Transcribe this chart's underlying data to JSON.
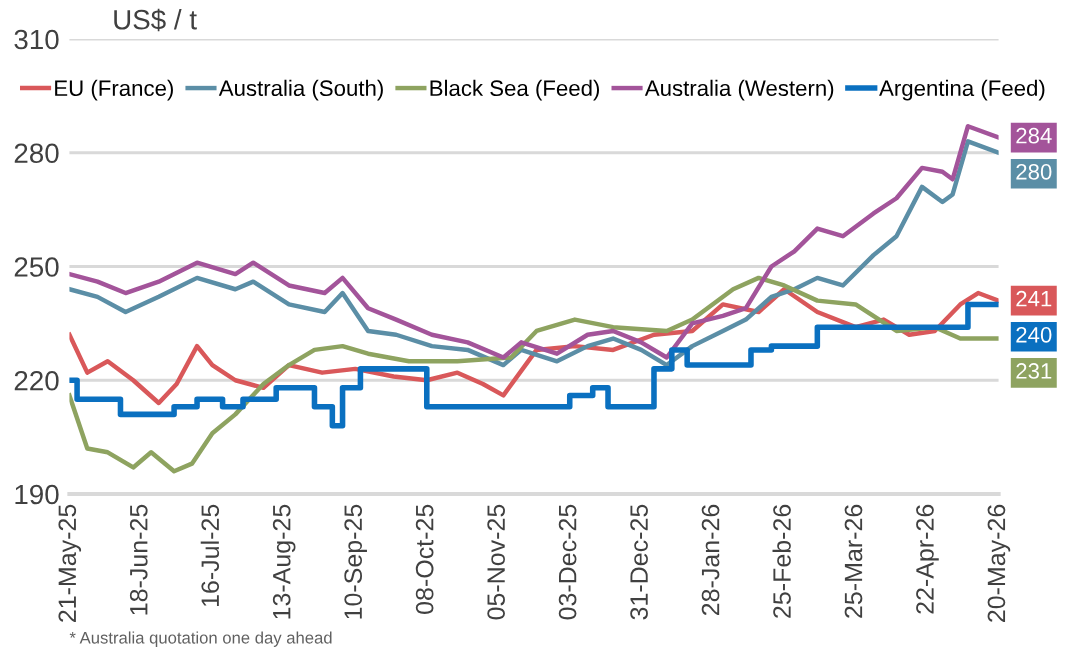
{
  "chart_data": {
    "type": "line",
    "ylabel": "US$ / t",
    "xlim": [
      "2025-05-21",
      "2026-05-20"
    ],
    "xticks": [
      {
        "value": "2025-05-21",
        "label": "21-May-25"
      },
      {
        "value": "2025-06-18",
        "label": "18-Jun-25"
      },
      {
        "value": "2025-07-16",
        "label": "16-Jul-25"
      },
      {
        "value": "2025-08-13",
        "label": "13-Aug-25"
      },
      {
        "value": "2025-09-10",
        "label": "10-Sep-25"
      },
      {
        "value": "2025-10-08",
        "label": "08-Oct-25"
      },
      {
        "value": "2025-11-05",
        "label": "05-Nov-25"
      },
      {
        "value": "2025-12-03",
        "label": "03-Dec-25"
      },
      {
        "value": "2025-12-31",
        "label": "31-Dec-25"
      },
      {
        "value": "2026-01-28",
        "label": "28-Jan-26"
      },
      {
        "value": "2026-02-25",
        "label": "25-Feb-26"
      },
      {
        "value": "2026-03-25",
        "label": "25-Mar-26"
      },
      {
        "value": "2026-04-22",
        "label": "22-Apr-26"
      },
      {
        "value": "2026-05-20",
        "label": "20-May-26"
      }
    ],
    "ylim": [
      190,
      310
    ],
    "yticks": [
      190,
      220,
      250,
      280,
      310
    ],
    "grid": "y",
    "legend": "top",
    "series": [
      {
        "name": "EU (France)",
        "color": "#d9585a",
        "x": [
          "2025-05-21",
          "2025-05-28",
          "2025-06-05",
          "2025-06-15",
          "2025-06-25",
          "2025-07-02",
          "2025-07-10",
          "2025-07-16",
          "2025-07-25",
          "2025-08-05",
          "2025-08-15",
          "2025-08-28",
          "2025-09-10",
          "2025-09-25",
          "2025-10-08",
          "2025-10-20",
          "2025-10-30",
          "2025-11-07",
          "2025-11-20",
          "2025-12-05",
          "2025-12-20",
          "2026-01-05",
          "2026-01-20",
          "2026-02-01",
          "2026-02-15",
          "2026-02-25",
          "2026-03-10",
          "2026-03-25",
          "2026-04-05",
          "2026-04-15",
          "2026-04-25",
          "2026-05-05",
          "2026-05-12",
          "2026-05-20"
        ],
        "values": [
          232,
          222,
          225,
          220,
          214,
          219,
          229,
          224,
          220,
          218,
          224,
          222,
          223,
          221,
          220,
          222,
          219,
          216,
          228,
          229,
          228,
          232,
          233,
          240,
          238,
          244,
          238,
          234,
          236,
          232,
          233,
          240,
          243,
          241
        ]
      },
      {
        "name": "Australia (South)",
        "color": "#5b8ea6",
        "x": [
          "2025-05-21",
          "2025-06-01",
          "2025-06-12",
          "2025-06-25",
          "2025-07-10",
          "2025-07-25",
          "2025-08-01",
          "2025-08-15",
          "2025-08-29",
          "2025-09-05",
          "2025-09-15",
          "2025-09-26",
          "2025-10-10",
          "2025-10-24",
          "2025-11-07",
          "2025-11-14",
          "2025-11-28",
          "2025-12-10",
          "2025-12-20",
          "2025-12-31",
          "2026-01-10",
          "2026-01-20",
          "2026-02-01",
          "2026-02-10",
          "2026-02-20",
          "2026-03-01",
          "2026-03-10",
          "2026-03-20",
          "2026-04-01",
          "2026-04-10",
          "2026-04-20",
          "2026-04-28",
          "2026-05-02",
          "2026-05-08",
          "2026-05-20"
        ],
        "values": [
          244,
          242,
          238,
          242,
          247,
          244,
          246,
          240,
          238,
          243,
          233,
          232,
          229,
          228,
          224,
          228,
          225,
          229,
          231,
          228,
          224,
          229,
          233,
          236,
          242,
          244,
          247,
          245,
          253,
          258,
          271,
          267,
          269,
          283,
          280
        ]
      },
      {
        "name": "Black Sea (Feed)",
        "color": "#8ea360",
        "x": [
          "2025-05-21",
          "2025-05-28",
          "2025-06-05",
          "2025-06-15",
          "2025-06-22",
          "2025-07-01",
          "2025-07-08",
          "2025-07-16",
          "2025-07-25",
          "2025-08-05",
          "2025-08-15",
          "2025-08-25",
          "2025-09-05",
          "2025-09-15",
          "2025-10-01",
          "2025-10-20",
          "2025-11-10",
          "2025-11-20",
          "2025-12-05",
          "2025-12-20",
          "2026-01-10",
          "2026-01-20",
          "2026-02-05",
          "2026-02-15",
          "2026-02-25",
          "2026-03-10",
          "2026-03-25",
          "2026-04-10",
          "2026-04-25",
          "2026-05-05",
          "2026-05-20"
        ],
        "values": [
          216,
          202,
          201,
          197,
          201,
          196,
          198,
          206,
          211,
          219,
          224,
          228,
          229,
          227,
          225,
          225,
          226,
          233,
          236,
          234,
          233,
          236,
          244,
          247,
          245,
          241,
          240,
          233,
          234,
          231,
          231
        ]
      },
      {
        "name": "Australia (Western)",
        "color": "#a3549a",
        "x": [
          "2025-05-21",
          "2025-06-01",
          "2025-06-12",
          "2025-06-25",
          "2025-07-10",
          "2025-07-25",
          "2025-08-01",
          "2025-08-15",
          "2025-08-29",
          "2025-09-05",
          "2025-09-15",
          "2025-09-26",
          "2025-10-10",
          "2025-10-24",
          "2025-11-07",
          "2025-11-14",
          "2025-11-28",
          "2025-12-10",
          "2025-12-20",
          "2025-12-31",
          "2026-01-10",
          "2026-01-20",
          "2026-02-01",
          "2026-02-10",
          "2026-02-20",
          "2026-03-01",
          "2026-03-10",
          "2026-03-20",
          "2026-04-01",
          "2026-04-10",
          "2026-04-20",
          "2026-04-28",
          "2026-05-02",
          "2026-05-08",
          "2026-05-20"
        ],
        "values": [
          248,
          246,
          243,
          246,
          251,
          248,
          251,
          245,
          243,
          247,
          239,
          236,
          232,
          230,
          226,
          230,
          227,
          232,
          233,
          230,
          226,
          235,
          237,
          239,
          250,
          254,
          260,
          258,
          264,
          268,
          276,
          275,
          273,
          287,
          284
        ]
      },
      {
        "name": "Argentina (Feed)",
        "color": "#0a70c0",
        "type": "step",
        "x": [
          "2025-05-21",
          "2025-05-24",
          "2025-06-10",
          "2025-07-01",
          "2025-07-10",
          "2025-07-20",
          "2025-07-28",
          "2025-08-10",
          "2025-08-25",
          "2025-09-01",
          "2025-09-05",
          "2025-09-12",
          "2025-10-08",
          "2025-12-03",
          "2025-12-12",
          "2025-12-18",
          "2025-12-22",
          "2026-01-05",
          "2026-01-12",
          "2026-01-18",
          "2026-02-05",
          "2026-02-12",
          "2026-02-20",
          "2026-03-10",
          "2026-05-08",
          "2026-05-20"
        ],
        "values": [
          220,
          215,
          211,
          213,
          215,
          213,
          215,
          218,
          213,
          208,
          218,
          223,
          213,
          216,
          218,
          213,
          213,
          223,
          228,
          224,
          224,
          228,
          229,
          234,
          240,
          240
        ]
      }
    ],
    "annotations": [
      {
        "text": "284",
        "x": "2026-05-20",
        "y": 284
      },
      {
        "text": "280",
        "x": "2026-05-20",
        "y": 280
      },
      {
        "text": "241",
        "x": "2026-05-20",
        "y": 241
      },
      {
        "text": "240",
        "x": "2026-05-20",
        "y": 240
      },
      {
        "text": "231",
        "x": "2026-05-20",
        "y": 231
      },
      "* Australia quotation one day ahead"
    ]
  }
}
